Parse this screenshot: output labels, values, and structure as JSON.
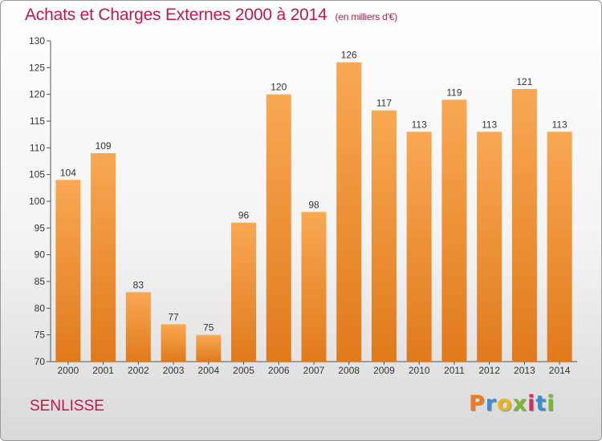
{
  "title": "Achats et Charges Externes 2000 à 2014",
  "subtitle": "(en milliers d'€)",
  "footer_label": "SENLISSE",
  "logo_text": "Proxiti",
  "colors": {
    "title": "#c8144b",
    "bar_top": "#f9a853",
    "bar_bottom": "#e07a1c",
    "axis": "#555555"
  },
  "chart_data": {
    "type": "bar",
    "title": "Achats et Charges Externes 2000 à 2014",
    "categories": [
      "2000",
      "2001",
      "2002",
      "2003",
      "2004",
      "2005",
      "2006",
      "2007",
      "2008",
      "2009",
      "2010",
      "2011",
      "2012",
      "2013",
      "2014"
    ],
    "values": [
      104,
      109,
      83,
      77,
      75,
      96,
      120,
      98,
      126,
      117,
      113,
      119,
      113,
      121,
      113
    ],
    "ylim": [
      70,
      130
    ],
    "yticks": [
      70,
      75,
      80,
      85,
      90,
      95,
      100,
      105,
      110,
      115,
      120,
      125,
      130
    ],
    "grid": false,
    "xlabel": "",
    "ylabel": ""
  }
}
